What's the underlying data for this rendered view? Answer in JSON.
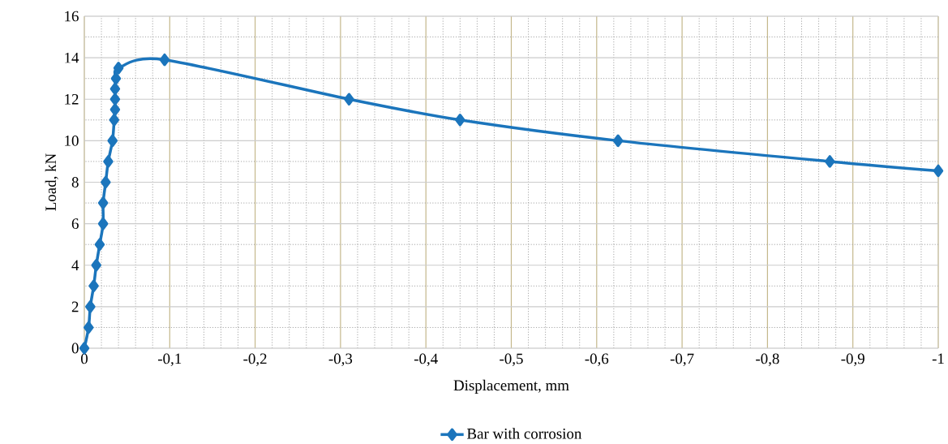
{
  "chart_data": {
    "type": "line",
    "xlabel": "Displacement, mm",
    "ylabel": "Load, kN",
    "x": [
      0,
      -0.005,
      -0.007,
      -0.011,
      -0.014,
      -0.018,
      -0.022,
      -0.022,
      -0.025,
      -0.028,
      -0.033,
      -0.035,
      -0.036,
      -0.036,
      -0.036,
      -0.037,
      -0.04,
      -0.094,
      -0.31,
      -0.44,
      -0.625,
      -0.873,
      -1
    ],
    "series": [
      {
        "name": "Bar with corrosion",
        "color": "#1b75bc",
        "values": [
          0,
          1,
          2,
          3,
          4,
          5,
          6,
          7,
          8,
          9,
          10,
          11,
          11.5,
          12,
          12.5,
          13,
          13.5,
          13.9,
          12,
          11,
          10,
          9,
          8.55
        ]
      }
    ],
    "xlim": [
      0,
      -1
    ],
    "xticks": [
      0,
      {
        "value": -0.1,
        "label": "-0,1"
      },
      {
        "value": -0.2,
        "label": "-0,2"
      },
      {
        "value": -0.3,
        "label": "-0,3"
      },
      {
        "value": -0.4,
        "label": "-0,4"
      },
      {
        "value": -0.5,
        "label": "-0,5"
      },
      {
        "value": -0.6,
        "label": "-0,6"
      },
      {
        "value": -0.7,
        "label": "-0,7"
      },
      {
        "value": -0.8,
        "label": "-0,8"
      },
      {
        "value": -0.9,
        "label": "-0,9"
      },
      -1
    ],
    "ylim": [
      0,
      16
    ],
    "yticks": [
      0,
      2,
      4,
      6,
      8,
      10,
      12,
      14,
      16
    ],
    "grid": true,
    "legend": "bottom",
    "marker": "diamond",
    "line_style": "solid"
  }
}
